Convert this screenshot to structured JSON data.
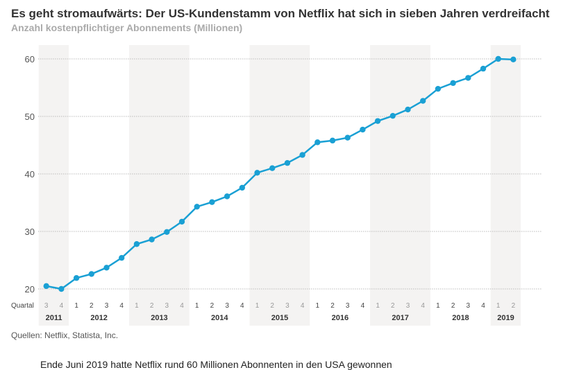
{
  "chart_data": {
    "type": "line",
    "title": "Es geht stromaufwärts: Der US-Kundenstamm von Netflix hat sich in sieben Jahren verdreifacht",
    "subtitle": "Anzahl kostenpflichtiger Abonnements (Millionen)",
    "xlabel": "Quartal",
    "ylabel": "",
    "ylim": [
      20,
      60
    ],
    "yticks": [
      20,
      30,
      40,
      50,
      60
    ],
    "grid": true,
    "years": [
      {
        "label": "2011",
        "quarters": [
          "3",
          "4"
        ]
      },
      {
        "label": "2012",
        "quarters": [
          "1",
          "2",
          "3",
          "4"
        ]
      },
      {
        "label": "2013",
        "quarters": [
          "1",
          "2",
          "3",
          "4"
        ]
      },
      {
        "label": "2014",
        "quarters": [
          "1",
          "2",
          "3",
          "4"
        ]
      },
      {
        "label": "2015",
        "quarters": [
          "1",
          "2",
          "3",
          "4"
        ]
      },
      {
        "label": "2016",
        "quarters": [
          "1",
          "2",
          "3",
          "4"
        ]
      },
      {
        "label": "2017",
        "quarters": [
          "1",
          "2",
          "3",
          "4"
        ]
      },
      {
        "label": "2018",
        "quarters": [
          "1",
          "2",
          "3",
          "4"
        ]
      },
      {
        "label": "2019",
        "quarters": [
          "1",
          "2"
        ]
      }
    ],
    "series": [
      {
        "name": "US-Abonnements",
        "color": "#1aa0d4",
        "values": [
          20.5,
          20.0,
          21.9,
          22.6,
          23.7,
          25.4,
          27.8,
          28.6,
          29.9,
          31.7,
          34.3,
          35.1,
          36.1,
          37.6,
          40.2,
          41.0,
          41.9,
          43.3,
          45.5,
          45.8,
          46.3,
          47.7,
          49.2,
          50.1,
          51.2,
          52.7,
          54.8,
          55.8,
          56.7,
          58.3,
          60.0,
          59.9
        ]
      }
    ]
  },
  "source": "Quellen: Netflix, Statista, Inc.",
  "body_text_cut": "Ende Juni 2019 hatte Netflix rund 60 Millionen Abonnenten in den USA gewonnen"
}
